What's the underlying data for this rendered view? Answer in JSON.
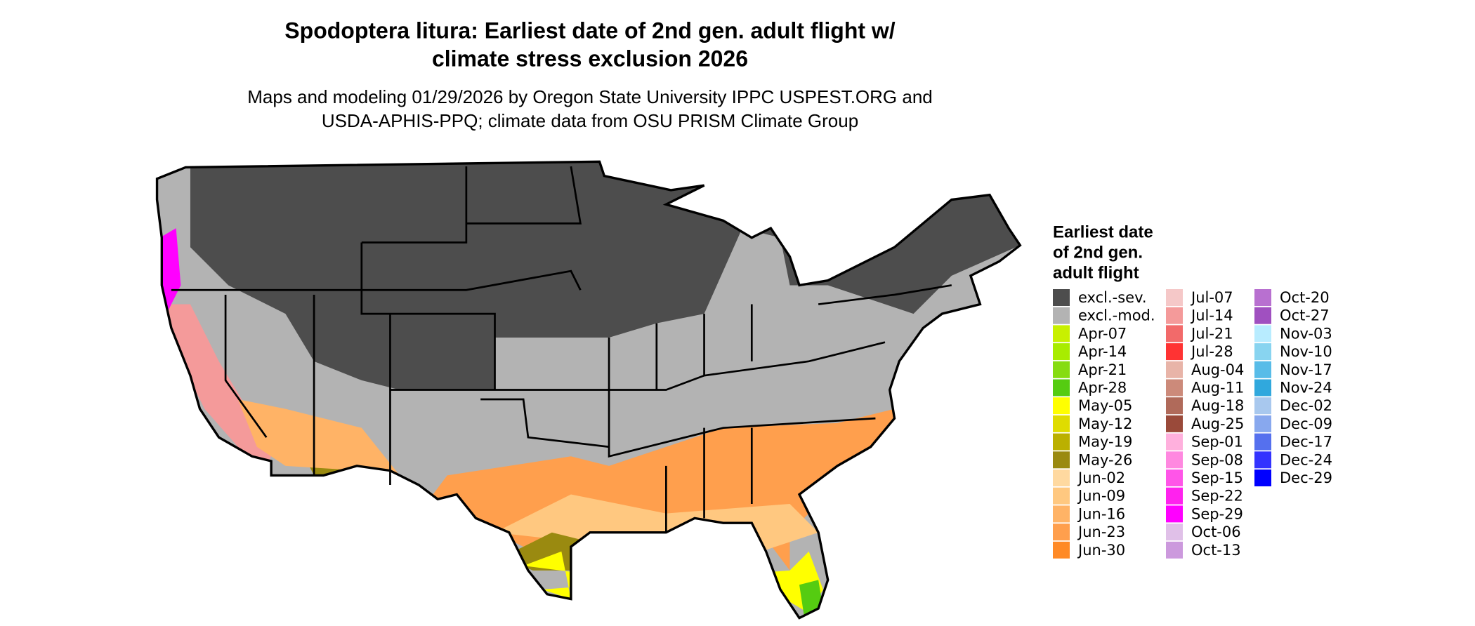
{
  "title": [
    "Spodoptera litura: Earliest date of 2nd gen. adult flight w/",
    "climate stress exclusion 2026"
  ],
  "subtitle": [
    "Maps and modeling 01/29/2026 by Oregon State University IPPC USPEST.ORG and",
    "USDA-APHIS-PPQ; climate data from OSU PRISM Climate Group"
  ],
  "legend": {
    "title": [
      "Earliest date",
      "of 2nd gen.",
      "adult flight"
    ],
    "items": [
      {
        "label": "excl.-sev.",
        "color": "#4d4d4d"
      },
      {
        "label": "excl.-mod.",
        "color": "#b3b3b3"
      },
      {
        "label": "Apr-07",
        "color": "#c8f000"
      },
      {
        "label": "Apr-14",
        "color": "#a8ec00"
      },
      {
        "label": "Apr-21",
        "color": "#86dc10"
      },
      {
        "label": "Apr-28",
        "color": "#55cc11"
      },
      {
        "label": "May-05",
        "color": "#ffff00"
      },
      {
        "label": "May-12",
        "color": "#dfdc00"
      },
      {
        "label": "May-19",
        "color": "#bbb000"
      },
      {
        "label": "May-26",
        "color": "#9a8a10"
      },
      {
        "label": "Jun-02",
        "color": "#ffd9a0"
      },
      {
        "label": "Jun-09",
        "color": "#ffc880"
      },
      {
        "label": "Jun-16",
        "color": "#ffb366"
      },
      {
        "label": "Jun-23",
        "color": "#ff9f4d"
      },
      {
        "label": "Jun-30",
        "color": "#ff8a26"
      },
      {
        "label": "Jul-07",
        "color": "#f5c8c8"
      },
      {
        "label": "Jul-14",
        "color": "#f49a9a"
      },
      {
        "label": "Jul-21",
        "color": "#f26a6a"
      },
      {
        "label": "Jul-28",
        "color": "#ff3333"
      },
      {
        "label": "Aug-04",
        "color": "#e8b4a8"
      },
      {
        "label": "Aug-11",
        "color": "#cc8a7a"
      },
      {
        "label": "Aug-18",
        "color": "#b06a5a"
      },
      {
        "label": "Aug-25",
        "color": "#9a4a3a"
      },
      {
        "label": "Sep-01",
        "color": "#ffb0dd"
      },
      {
        "label": "Sep-08",
        "color": "#ff88e0"
      },
      {
        "label": "Sep-15",
        "color": "#ff55e8"
      },
      {
        "label": "Sep-22",
        "color": "#ff22ee"
      },
      {
        "label": "Sep-29",
        "color": "#ff00ff"
      },
      {
        "label": "Oct-06",
        "color": "#e0c0e8"
      },
      {
        "label": "Oct-13",
        "color": "#cc99dd"
      },
      {
        "label": "Oct-20",
        "color": "#b870d0"
      },
      {
        "label": "Oct-27",
        "color": "#a050c0"
      },
      {
        "label": "Nov-03",
        "color": "#b8ecff"
      },
      {
        "label": "Nov-10",
        "color": "#88d4f0"
      },
      {
        "label": "Nov-17",
        "color": "#58bce8"
      },
      {
        "label": "Nov-24",
        "color": "#30a8dd"
      },
      {
        "label": "Dec-02",
        "color": "#a8c8ee"
      },
      {
        "label": "Dec-09",
        "color": "#88a8ee"
      },
      {
        "label": "Dec-17",
        "color": "#5570ee"
      },
      {
        "label": "Dec-24",
        "color": "#3333ff"
      },
      {
        "label": "Dec-29",
        "color": "#0000ff"
      }
    ]
  }
}
